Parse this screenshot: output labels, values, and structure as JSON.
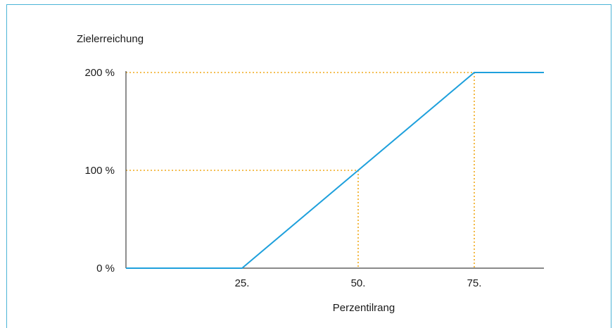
{
  "chart_data": {
    "type": "line",
    "ylabel": "Zielerreichung",
    "xlabel": "Perzentilrang",
    "x_ticks": [
      {
        "value": 25,
        "label": "25."
      },
      {
        "value": 50,
        "label": "50."
      },
      {
        "value": 75,
        "label": "75."
      }
    ],
    "y_ticks": [
      {
        "value": 0,
        "label": "0 %"
      },
      {
        "value": 100,
        "label": "100 %"
      },
      {
        "value": 200,
        "label": "200 %"
      }
    ],
    "xlim": [
      0,
      90
    ],
    "ylim": [
      0,
      200
    ],
    "series": [
      {
        "x": [
          0,
          25,
          75,
          90
        ],
        "y": [
          0,
          0,
          200,
          200
        ],
        "color": "#1ea0dc"
      }
    ],
    "reference_lines": [
      {
        "x": 50,
        "y": 100,
        "color": "#f0a818"
      },
      {
        "x": 75,
        "y": 200,
        "color": "#f0a818"
      }
    ],
    "axis_color": "#444444",
    "frame_color": "#4bb4d6",
    "grid": false
  }
}
